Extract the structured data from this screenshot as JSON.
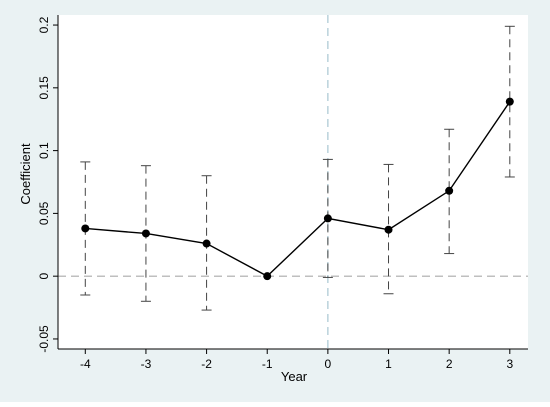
{
  "chart_data": {
    "type": "line",
    "title": "",
    "xlabel": "Year",
    "ylabel": "Coefficient",
    "x": [
      -4,
      -3,
      -2,
      -1,
      0,
      1,
      2,
      3
    ],
    "x_tick_labels": [
      "-4",
      "-3",
      "-2",
      "-1",
      "0",
      "1",
      "2",
      "3"
    ],
    "y_ticks": [
      -0.05,
      0,
      0.05,
      0.1,
      0.15,
      0.2
    ],
    "y_tick_labels": [
      "-0.05",
      "0",
      "0.05",
      "0.1",
      "0.15",
      "0.2"
    ],
    "xlim": [
      -4.45,
      3.3
    ],
    "ylim": [
      -0.058,
      0.208
    ],
    "series": [
      {
        "values": [
          0.038,
          0.034,
          0.026,
          0.0,
          0.046,
          0.037,
          0.068,
          0.139
        ],
        "ci_low": [
          -0.015,
          -0.02,
          -0.027,
          0.0,
          -0.001,
          -0.014,
          0.018,
          0.079
        ],
        "ci_high": [
          0.091,
          0.088,
          0.08,
          0.0,
          0.093,
          0.089,
          0.117,
          0.199
        ]
      }
    ],
    "reference_lines": {
      "horizontal_y": 0,
      "vertical_x": 0
    },
    "grid": false,
    "legend": "none",
    "colors": {
      "line": "#000000",
      "marker": "#000000",
      "error_bar": "#444444",
      "reference_line_h": "#aaaaaa",
      "reference_line_v": "#a8c6d2",
      "background": "#eaf2f3",
      "plot_background": "#ffffff"
    }
  }
}
